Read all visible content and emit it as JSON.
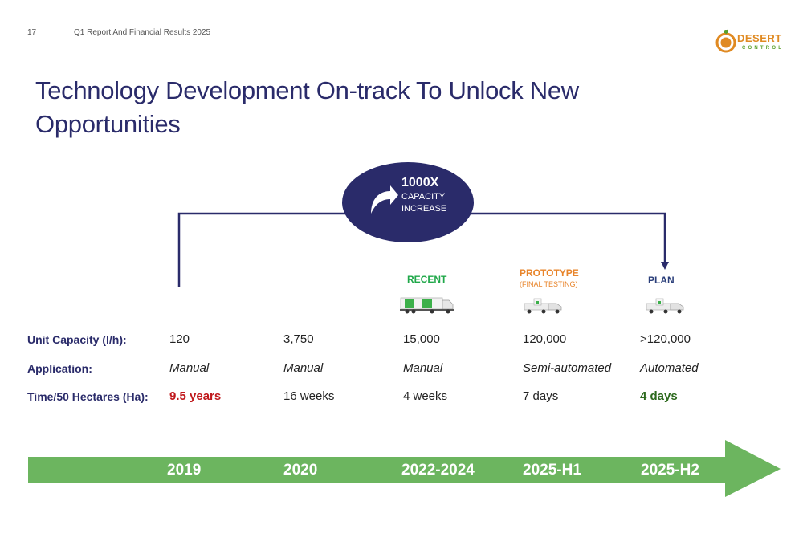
{
  "header": {
    "page_number": "17",
    "report_title": "Q1 Report And Financial Results 2025",
    "logo_word": "DESERT",
    "logo_sub": "CONTROL"
  },
  "title": "Technology Development On-track To Unlock New Opportunities",
  "badge": {
    "main": "1000X",
    "line1": "CAPACITY",
    "line2": "INCREASE",
    "icon": "curved-arrow-icon"
  },
  "stages": {
    "recent": "RECENT",
    "prototype": "PROTOTYPE",
    "prototype_sub": "(FINAL TESTING)",
    "plan": "PLAN"
  },
  "rows": {
    "capacity_label": "Unit Capacity (l/h):",
    "application_label": "Application:",
    "time_label": "Time/50 Hectares (Ha):"
  },
  "columns": [
    {
      "year": "2019",
      "capacity": "120",
      "application": "Manual",
      "time": "9.5 years"
    },
    {
      "year": "2020",
      "capacity": "3,750",
      "application": "Manual",
      "time": "16 weeks"
    },
    {
      "year": "2022-2024",
      "capacity": "15,000",
      "application": "Manual",
      "time": "4 weeks"
    },
    {
      "year": "2025-H1",
      "capacity": "120,000",
      "application": "Semi-automated",
      "time": "7 days"
    },
    {
      "year": "2025-H2",
      "capacity": ">120,000",
      "application": "Automated",
      "time": "4 days"
    }
  ],
  "colors": {
    "navy": "#2a2b6a",
    "timeline_green": "#6cb55f",
    "highlight_red": "#c0181c",
    "highlight_green": "#2d6a1e",
    "recent_green": "#20a84a",
    "prototype_orange": "#e8842a"
  }
}
